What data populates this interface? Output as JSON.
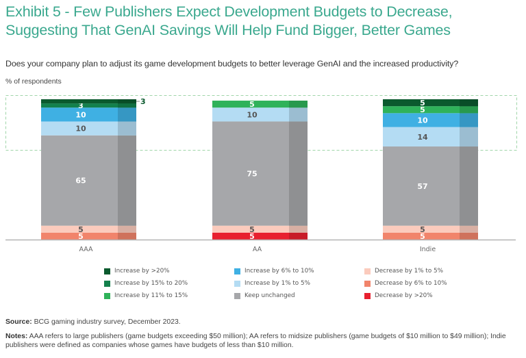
{
  "header": {
    "title_line1": "Exhibit 5 - Few Publishers Expect Development Budgets to Decrease,",
    "title_line2": "Suggesting That GenAI Savings Will Help Fund Bigger, Better Games",
    "question": "Does your company plan to adjust its game development budgets to better leverage GenAI and the increased productivity?",
    "unit_label": "% of respondents"
  },
  "chart_data": {
    "type": "bar",
    "stacked": true,
    "title": "Exhibit 5 - Few Publishers Expect Development Budgets to Decrease, Suggesting That GenAI Savings Will Help Fund Bigger, Better Games",
    "ylabel": "% of respondents",
    "xlabel": "",
    "categories": [
      "AAA",
      "AA",
      "Indie"
    ],
    "stack_order_bottom_to_top": [
      "Decrease by >20%",
      "Decrease by 6% to 10%",
      "Decrease by 1% to 5%",
      "Keep unchanged",
      "Increase by 1% to 5%",
      "Increase by 6% to 10%",
      "Increase by 11% to 15%",
      "Increase by 15% to 20%",
      "Increase by >20%"
    ],
    "series": [
      {
        "name": "Increase by >20%",
        "color": "#0b5a2e",
        "label_color": "#ffffff",
        "values": [
          3,
          0,
          5
        ]
      },
      {
        "name": "Increase by 15% to 20%",
        "color": "#13804c",
        "label_color": "#ffffff",
        "values": [
          3,
          0,
          0
        ]
      },
      {
        "name": "Increase by 11% to 15%",
        "color": "#2fb25a",
        "label_color": "#ffffff",
        "values": [
          0,
          5,
          5
        ]
      },
      {
        "name": "Increase by 6% to 10%",
        "color": "#3fb0e3",
        "label_color": "#ffffff",
        "values": [
          10,
          0,
          10
        ]
      },
      {
        "name": "Increase by 1% to 5%",
        "color": "#b4dcf3",
        "label_color": "#555555",
        "values": [
          10,
          10,
          14
        ]
      },
      {
        "name": "Keep unchanged",
        "color": "#a6a7aa",
        "label_color": "#ffffff",
        "values": [
          65,
          75,
          57
        ]
      },
      {
        "name": "Decrease by 1% to 5%",
        "color": "#fbcbbd",
        "label_color": "#555555",
        "values": [
          5,
          5,
          5
        ]
      },
      {
        "name": "Decrease by 6% to 10%",
        "color": "#f1846b",
        "label_color": "#ffffff",
        "values": [
          5,
          0,
          5
        ]
      },
      {
        "name": "Decrease by >20%",
        "color": "#e8202f",
        "label_color": "#ffffff",
        "values": [
          0,
          5,
          0
        ]
      }
    ],
    "outside_labels": [
      {
        "category": "AAA",
        "series": "Increase by >20%",
        "text": "3",
        "color": "#0b5a2e"
      }
    ],
    "highlight_box": "dashed green outline around the increase segments",
    "legend": {
      "placement": "bottom",
      "columns": [
        [
          "Increase by >20%",
          "Increase by 15% to 20%",
          "Increase by 11% to 15%"
        ],
        [
          "Increase by 6% to 10%",
          "Increase by 1% to 5%",
          "Keep unchanged"
        ],
        [
          "Decrease by 1% to 5%",
          "Decrease by 6% to 10%",
          "Decrease by >20%"
        ]
      ]
    },
    "ylim": [
      0,
      101
    ],
    "grid": false
  },
  "footer": {
    "source_label": "Source:",
    "source_text": " BCG gaming industry survey, December 2023.",
    "notes_label": "Notes:",
    "notes_text": " AAA refers to large publishers (game budgets exceeding $50 million); AA refers to midsize publishers (game budgets of $10 million to $49 million); Indie publishers were defined as companies whose games have budgets of less than $10 million."
  }
}
